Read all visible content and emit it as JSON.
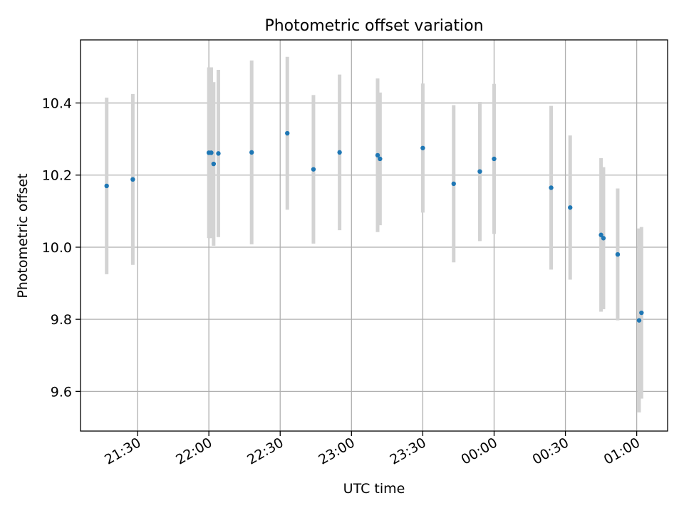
{
  "chart_data": {
    "type": "scatter",
    "title": "Photometric offset variation",
    "xlabel": "UTC time",
    "ylabel": "Photometric offset",
    "x_axis_type": "time",
    "x_ticks": [
      "21:30",
      "22:00",
      "22:30",
      "23:00",
      "23:30",
      "00:00",
      "00:30",
      "01:00"
    ],
    "xlim": [
      "21:06",
      "01:13"
    ],
    "y_ticks": [
      "9.6",
      "9.8",
      "10.0",
      "10.2",
      "10.4"
    ],
    "ylim": [
      9.49,
      10.575
    ],
    "grid": true,
    "colors": {
      "point": "#1f77b4",
      "errorbar": "#d3d3d3",
      "grid": "#b0b0b0"
    },
    "points": [
      {
        "t": "21:17",
        "y": 10.17,
        "yerr": 0.245
      },
      {
        "t": "21:28",
        "y": 10.188,
        "yerr": 0.237
      },
      {
        "t": "22:00",
        "y": 10.262,
        "yerr": 0.237
      },
      {
        "t": "22:01",
        "y": 10.262,
        "yerr": 0.237
      },
      {
        "t": "22:02",
        "y": 10.231,
        "yerr": 0.227
      },
      {
        "t": "22:04",
        "y": 10.26,
        "yerr": 0.232
      },
      {
        "t": "22:18",
        "y": 10.263,
        "yerr": 0.255
      },
      {
        "t": "22:33",
        "y": 10.316,
        "yerr": 0.212
      },
      {
        "t": "22:44",
        "y": 10.216,
        "yerr": 0.206
      },
      {
        "t": "22:55",
        "y": 10.263,
        "yerr": 0.216
      },
      {
        "t": "23:11",
        "y": 10.255,
        "yerr": 0.213
      },
      {
        "t": "23:12",
        "y": 10.245,
        "yerr": 0.184
      },
      {
        "t": "23:30",
        "y": 10.275,
        "yerr": 0.179
      },
      {
        "t": "23:43",
        "y": 10.176,
        "yerr": 0.218
      },
      {
        "t": "23:54",
        "y": 10.21,
        "yerr": 0.193
      },
      {
        "t": "00:00",
        "y": 10.245,
        "yerr": 0.208
      },
      {
        "t": "00:24",
        "y": 10.165,
        "yerr": 0.227
      },
      {
        "t": "00:32",
        "y": 10.11,
        "yerr": 0.2
      },
      {
        "t": "00:45",
        "y": 10.034,
        "yerr": 0.213
      },
      {
        "t": "00:46",
        "y": 10.025,
        "yerr": 0.197
      },
      {
        "t": "00:52",
        "y": 9.98,
        "yerr": 0.183
      },
      {
        "t": "01:01",
        "y": 9.797,
        "yerr": 0.255
      },
      {
        "t": "01:02",
        "y": 9.818,
        "yerr": 0.238
      }
    ]
  }
}
